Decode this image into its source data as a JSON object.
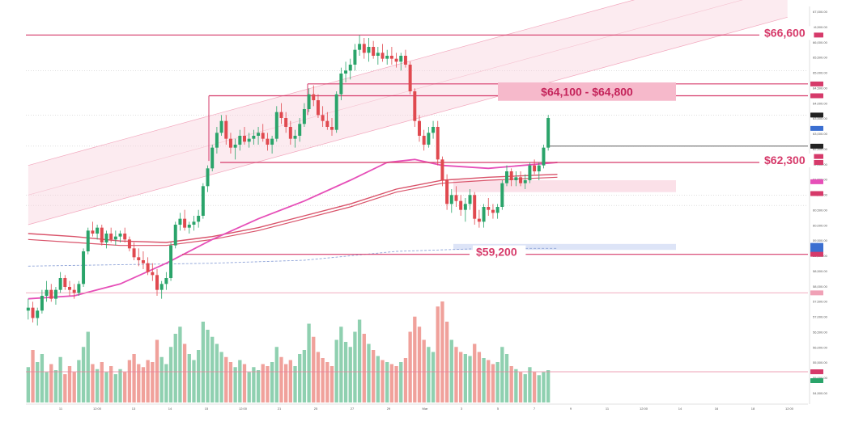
{
  "chart_data": {
    "type": "candlestick",
    "title": "",
    "xlabel": "",
    "ylabel": "",
    "colors": {
      "up": "#2aa46a",
      "down": "#e0494f",
      "volume_up": "#8fd0b0",
      "volume_down": "#f0a19b",
      "level": "#d63a6a",
      "channel_fill": "#f9d3dd",
      "ma_pink": "#e64fb8",
      "ma_red": "#d9536a",
      "ma_blue": "#8ea3d8"
    },
    "levels": [
      {
        "label": "$66,600",
        "price": 66600
      },
      {
        "label": "$64,100 - $64,800",
        "price_low": 64100,
        "price_high": 64800
      },
      {
        "label": "$62,300",
        "price": 62300
      },
      {
        "label": "$59,200",
        "price": 59200
      }
    ],
    "candles": [
      [
        57300,
        57700,
        57000,
        57400
      ],
      [
        57400,
        57600,
        56900,
        57050
      ],
      [
        57050,
        57400,
        56800,
        57300
      ],
      [
        57300,
        58000,
        57200,
        57800
      ],
      [
        57800,
        58300,
        57600,
        58000
      ],
      [
        58000,
        58200,
        57600,
        57700
      ],
      [
        57700,
        58100,
        57500,
        58000
      ],
      [
        58000,
        58600,
        57900,
        58400
      ],
      [
        58400,
        58500,
        58000,
        58100
      ],
      [
        58100,
        58300,
        57800,
        58000
      ],
      [
        58000,
        58200,
        57700,
        57900
      ],
      [
        57900,
        58300,
        57800,
        58200
      ],
      [
        58200,
        59400,
        58100,
        59300
      ],
      [
        59300,
        60100,
        59200,
        60000
      ],
      [
        60000,
        60300,
        59800,
        59900
      ],
      [
        59900,
        60200,
        59700,
        60100
      ],
      [
        60100,
        60200,
        59500,
        59600
      ],
      [
        59600,
        60000,
        59400,
        59900
      ],
      [
        59900,
        60100,
        59600,
        59700
      ],
      [
        59700,
        60000,
        59500,
        59800
      ],
      [
        59800,
        60000,
        59600,
        59900
      ],
      [
        59900,
        60100,
        59600,
        59700
      ],
      [
        59700,
        59800,
        59300,
        59400
      ],
      [
        59400,
        59600,
        59000,
        59100
      ],
      [
        59100,
        59400,
        58800,
        59000
      ],
      [
        59000,
        59300,
        58700,
        58900
      ],
      [
        58900,
        59100,
        58500,
        58600
      ],
      [
        58600,
        58900,
        58300,
        58500
      ],
      [
        58500,
        58700,
        57800,
        58000
      ],
      [
        58000,
        58300,
        57700,
        58200
      ],
      [
        58200,
        58600,
        58000,
        58400
      ],
      [
        58400,
        59600,
        58300,
        59500
      ],
      [
        59500,
        60300,
        59400,
        60200
      ],
      [
        60200,
        60600,
        60000,
        60400
      ],
      [
        60400,
        60700,
        60000,
        60100
      ],
      [
        60100,
        60300,
        59900,
        60200
      ],
      [
        60200,
        60500,
        60000,
        60300
      ],
      [
        60300,
        60700,
        60100,
        60500
      ],
      [
        60500,
        61600,
        60400,
        61500
      ],
      [
        61500,
        62200,
        61300,
        62100
      ],
      [
        62100,
        62900,
        62000,
        62800
      ],
      [
        62800,
        63500,
        62600,
        63300
      ],
      [
        63300,
        63900,
        63200,
        63700
      ],
      [
        63700,
        63900,
        62900,
        63100
      ],
      [
        63100,
        63300,
        62600,
        62800
      ],
      [
        62800,
        63100,
        62400,
        62900
      ],
      [
        62900,
        63400,
        62700,
        63200
      ],
      [
        63200,
        63500,
        62900,
        63000
      ],
      [
        63000,
        63300,
        62800,
        63100
      ],
      [
        63100,
        63400,
        62900,
        63200
      ],
      [
        63200,
        63500,
        62900,
        63300
      ],
      [
        63300,
        63600,
        63000,
        63100
      ],
      [
        63100,
        63300,
        62700,
        62900
      ],
      [
        62900,
        63200,
        62600,
        63100
      ],
      [
        63100,
        64200,
        63000,
        64000
      ],
      [
        64000,
        64300,
        63600,
        63800
      ],
      [
        63800,
        64000,
        63300,
        63500
      ],
      [
        63500,
        63700,
        62900,
        63100
      ],
      [
        63100,
        63400,
        62800,
        63200
      ],
      [
        63200,
        63800,
        63000,
        63600
      ],
      [
        63600,
        64300,
        63500,
        64100
      ],
      [
        64100,
        64800,
        64000,
        64600
      ],
      [
        64600,
        64900,
        64200,
        64400
      ],
      [
        64400,
        64600,
        63800,
        63900
      ],
      [
        63900,
        64200,
        63500,
        63700
      ],
      [
        63700,
        64000,
        63400,
        63500
      ],
      [
        63500,
        63800,
        63200,
        63400
      ],
      [
        63400,
        64700,
        63300,
        64600
      ],
      [
        64600,
        65500,
        64400,
        65300
      ],
      [
        65300,
        65700,
        65000,
        65400
      ],
      [
        65400,
        65800,
        65100,
        65600
      ],
      [
        65600,
        66300,
        65400,
        66100
      ],
      [
        66100,
        66600,
        65900,
        66300
      ],
      [
        66300,
        66500,
        65800,
        66000
      ],
      [
        66000,
        66500,
        65700,
        66200
      ],
      [
        66200,
        66400,
        65800,
        65900
      ],
      [
        65900,
        66200,
        65600,
        66000
      ],
      [
        66000,
        66300,
        65700,
        65800
      ],
      [
        65800,
        66100,
        65600,
        65900
      ],
      [
        65900,
        66200,
        65600,
        65800
      ],
      [
        65800,
        66000,
        65500,
        65700
      ],
      [
        65700,
        66000,
        65400,
        65900
      ],
      [
        65900,
        66100,
        65500,
        65600
      ],
      [
        65600,
        65700,
        64600,
        64700
      ],
      [
        64700,
        64800,
        63500,
        63700
      ],
      [
        63700,
        63900,
        63000,
        63200
      ],
      [
        63200,
        63400,
        62700,
        62900
      ],
      [
        62900,
        63500,
        62800,
        63300
      ],
      [
        63300,
        63700,
        63100,
        63500
      ],
      [
        63500,
        63700,
        62200,
        62400
      ],
      [
        62400,
        62500,
        61500,
        61700
      ],
      [
        61700,
        61900,
        60700,
        60900
      ],
      [
        60900,
        61400,
        60600,
        61200
      ],
      [
        61200,
        61500,
        60800,
        61000
      ],
      [
        61000,
        61200,
        60500,
        60700
      ],
      [
        60700,
        61100,
        60300,
        60900
      ],
      [
        60900,
        61400,
        60700,
        61200
      ],
      [
        61200,
        61300,
        60200,
        60400
      ],
      [
        60400,
        60700,
        60100,
        60300
      ],
      [
        60300,
        60900,
        60100,
        60800
      ],
      [
        60800,
        61100,
        60500,
        60700
      ],
      [
        60700,
        60900,
        60400,
        60600
      ],
      [
        60600,
        60900,
        60400,
        60800
      ],
      [
        60800,
        61700,
        60700,
        61600
      ],
      [
        61600,
        62200,
        61500,
        62000
      ],
      [
        62000,
        62100,
        61500,
        61700
      ],
      [
        61700,
        62000,
        61500,
        61800
      ],
      [
        61800,
        62000,
        61500,
        61600
      ],
      [
        61600,
        61900,
        61400,
        61700
      ],
      [
        61700,
        62300,
        61600,
        62200
      ],
      [
        62200,
        62400,
        61900,
        62000
      ],
      [
        62000,
        62300,
        61700,
        62200
      ],
      [
        62200,
        62900,
        62100,
        62800
      ],
      [
        62800,
        63900,
        62700,
        63800
      ]
    ],
    "volumes": [
      0.35,
      0.52,
      0.4,
      0.48,
      0.3,
      0.38,
      0.32,
      0.45,
      0.28,
      0.36,
      0.3,
      0.42,
      0.55,
      0.7,
      0.38,
      0.33,
      0.4,
      0.3,
      0.36,
      0.28,
      0.33,
      0.3,
      0.42,
      0.48,
      0.38,
      0.35,
      0.42,
      0.4,
      0.62,
      0.45,
      0.38,
      0.55,
      0.68,
      0.75,
      0.58,
      0.48,
      0.42,
      0.52,
      0.8,
      0.72,
      0.65,
      0.58,
      0.5,
      0.45,
      0.4,
      0.35,
      0.42,
      0.38,
      0.3,
      0.35,
      0.32,
      0.38,
      0.36,
      0.4,
      0.55,
      0.45,
      0.38,
      0.42,
      0.36,
      0.48,
      0.52,
      0.78,
      0.65,
      0.5,
      0.44,
      0.4,
      0.36,
      0.62,
      0.75,
      0.6,
      0.55,
      0.7,
      0.82,
      0.68,
      0.58,
      0.52,
      0.46,
      0.42,
      0.4,
      0.38,
      0.36,
      0.4,
      0.44,
      0.7,
      0.85,
      0.75,
      0.62,
      0.55,
      0.5,
      0.95,
      1.0,
      0.8,
      0.62,
      0.55,
      0.5,
      0.48,
      0.46,
      0.58,
      0.5,
      0.44,
      0.42,
      0.38,
      0.4,
      0.55,
      0.48,
      0.36,
      0.33,
      0.3,
      0.28,
      0.35,
      0.3,
      0.27,
      0.3,
      0.32
    ],
    "y_axis_ticks": [
      "67,000.00",
      "66,500.00",
      "66,000.00",
      "65,500.00",
      "65,000.00",
      "64,500.00",
      "64,000.00",
      "63,500.00",
      "63,000.00",
      "62,500.00",
      "62,000.00",
      "61,500.00",
      "61,000.00",
      "60,500.00",
      "60,000.00",
      "59,500.00",
      "59,000.00",
      "58,500.00",
      "58,000.00",
      "57,500.00",
      "57,000.00",
      "56,500.00",
      "56,000.00",
      "55,500.00",
      "55,000.00",
      "54,500.00"
    ],
    "x_axis_ticks": [
      "11",
      "12:00",
      "13",
      "14",
      "15",
      "12:00",
      "21",
      "25",
      "27",
      "29",
      "Mar",
      "3",
      "5",
      "7",
      "9",
      "11",
      "12:00",
      "14",
      "16",
      "18",
      "12:00"
    ],
    "ylim": [
      54200,
      67400
    ],
    "ma_pink": [
      [
        0,
        57700
      ],
      [
        10,
        57800
      ],
      [
        20,
        58200
      ],
      [
        30,
        58900
      ],
      [
        40,
        59700
      ],
      [
        50,
        60400
      ],
      [
        60,
        61000
      ],
      [
        70,
        61700
      ],
      [
        78,
        62300
      ],
      [
        84,
        62400
      ],
      [
        90,
        62200
      ],
      [
        100,
        62100
      ],
      [
        115,
        62300
      ]
    ],
    "ma_red": [
      [
        0,
        59900
      ],
      [
        10,
        59800
      ],
      [
        20,
        59650
      ],
      [
        30,
        59600
      ],
      [
        40,
        59800
      ],
      [
        50,
        60100
      ],
      [
        60,
        60500
      ],
      [
        70,
        60900
      ],
      [
        80,
        61400
      ],
      [
        90,
        61700
      ],
      [
        100,
        61800
      ],
      [
        115,
        61900
      ]
    ],
    "ma_red2": [
      [
        0,
        59700
      ],
      [
        10,
        59600
      ],
      [
        20,
        59500
      ],
      [
        30,
        59500
      ],
      [
        40,
        59700
      ],
      [
        50,
        60000
      ],
      [
        60,
        60400
      ],
      [
        70,
        60800
      ],
      [
        80,
        61300
      ],
      [
        90,
        61600
      ],
      [
        100,
        61700
      ],
      [
        115,
        61800
      ]
    ],
    "ma_blue": [
      [
        0,
        58800
      ],
      [
        20,
        58850
      ],
      [
        40,
        58900
      ],
      [
        60,
        59000
      ],
      [
        80,
        59300
      ],
      [
        100,
        59400
      ],
      [
        115,
        59400
      ]
    ],
    "channel": {
      "lower_start": [
        0,
        60200
      ],
      "lower_end": [
        165,
        67200
      ],
      "upper_start": [
        0,
        62200
      ],
      "upper_end": [
        165,
        69200
      ]
    },
    "zones": [
      {
        "y_low": 61300,
        "y_high": 61700,
        "color": "#fbe0e8"
      },
      {
        "y_low": 59350,
        "y_high": 59550,
        "color": "#dde4f7"
      }
    ]
  }
}
